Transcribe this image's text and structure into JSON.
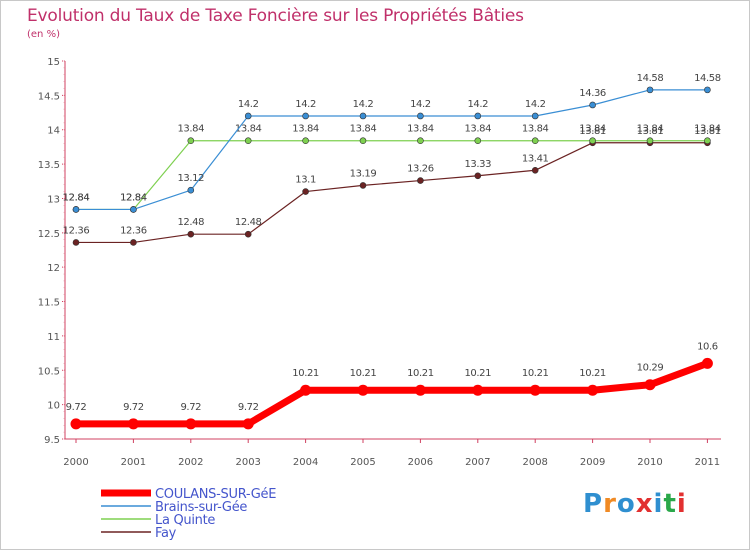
{
  "chart_data": {
    "type": "line",
    "title": "Evolution du Taux de Taxe Foncière sur les Propriétés Bâties",
    "unit_label": "(en %)",
    "xlabel": "",
    "ylabel": "",
    "ylim": [
      9.5,
      15
    ],
    "yticks": [
      "9.5",
      "10",
      "10.5",
      "11",
      "11.5",
      "12",
      "12.5",
      "13",
      "13.5",
      "14",
      "14.5",
      "15"
    ],
    "categories": [
      "2000",
      "2001",
      "2002",
      "2003",
      "2004",
      "2005",
      "2006",
      "2007",
      "2008",
      "2009",
      "2010",
      "2011"
    ],
    "legend_position": "bottom-left",
    "series": [
      {
        "name": "COULANS-SUR-GéE",
        "color": "#ff0000",
        "values": [
          9.72,
          9.72,
          9.72,
          9.72,
          10.21,
          10.21,
          10.21,
          10.21,
          10.21,
          10.21,
          10.29,
          10.6
        ],
        "labels": [
          "9.72",
          "9.72",
          "9.72",
          "9.72",
          "10.21",
          "10.21",
          "10.21",
          "10.21",
          "10.21",
          "10.21",
          "10.29",
          "10.6"
        ]
      },
      {
        "name": "Brains-sur-Gée",
        "color": "#3a8ed4",
        "values": [
          12.84,
          12.84,
          13.12,
          14.2,
          14.2,
          14.2,
          14.2,
          14.2,
          14.2,
          14.36,
          14.58,
          14.58
        ],
        "labels": [
          "12.84",
          "12.84",
          "13.12",
          "14.2",
          "14.2",
          "14.2",
          "14.2",
          "14.2",
          "14.2",
          "14.36",
          "14.58",
          "14.58"
        ]
      },
      {
        "name": "La Quinte",
        "color": "#7ed050",
        "values": [
          12.84,
          12.84,
          13.84,
          13.84,
          13.84,
          13.84,
          13.84,
          13.84,
          13.84,
          13.84,
          13.84,
          13.84
        ],
        "labels": [
          "12.84",
          "12.84",
          "13.84",
          "13.84",
          "13.84",
          "13.84",
          "13.84",
          "13.84",
          "13.84",
          "13.84",
          "13.84",
          "13.84"
        ]
      },
      {
        "name": "Fay",
        "color": "#6b2323",
        "values": [
          12.36,
          12.36,
          12.48,
          12.48,
          13.1,
          13.19,
          13.26,
          13.33,
          13.41,
          13.81,
          13.81,
          13.81
        ],
        "labels": [
          "12.36",
          "12.36",
          "12.48",
          "12.48",
          "13.1",
          "13.19",
          "13.26",
          "13.33",
          "13.41",
          "13.81",
          "13.81",
          "13.81"
        ]
      }
    ]
  },
  "logo": {
    "text": "Proxiti",
    "colors": [
      "#2f8fd0",
      "#f08a24",
      "#2f8fd0",
      "#e23030",
      "#2f8fd0",
      "#2aa84a",
      "#e23030"
    ]
  }
}
